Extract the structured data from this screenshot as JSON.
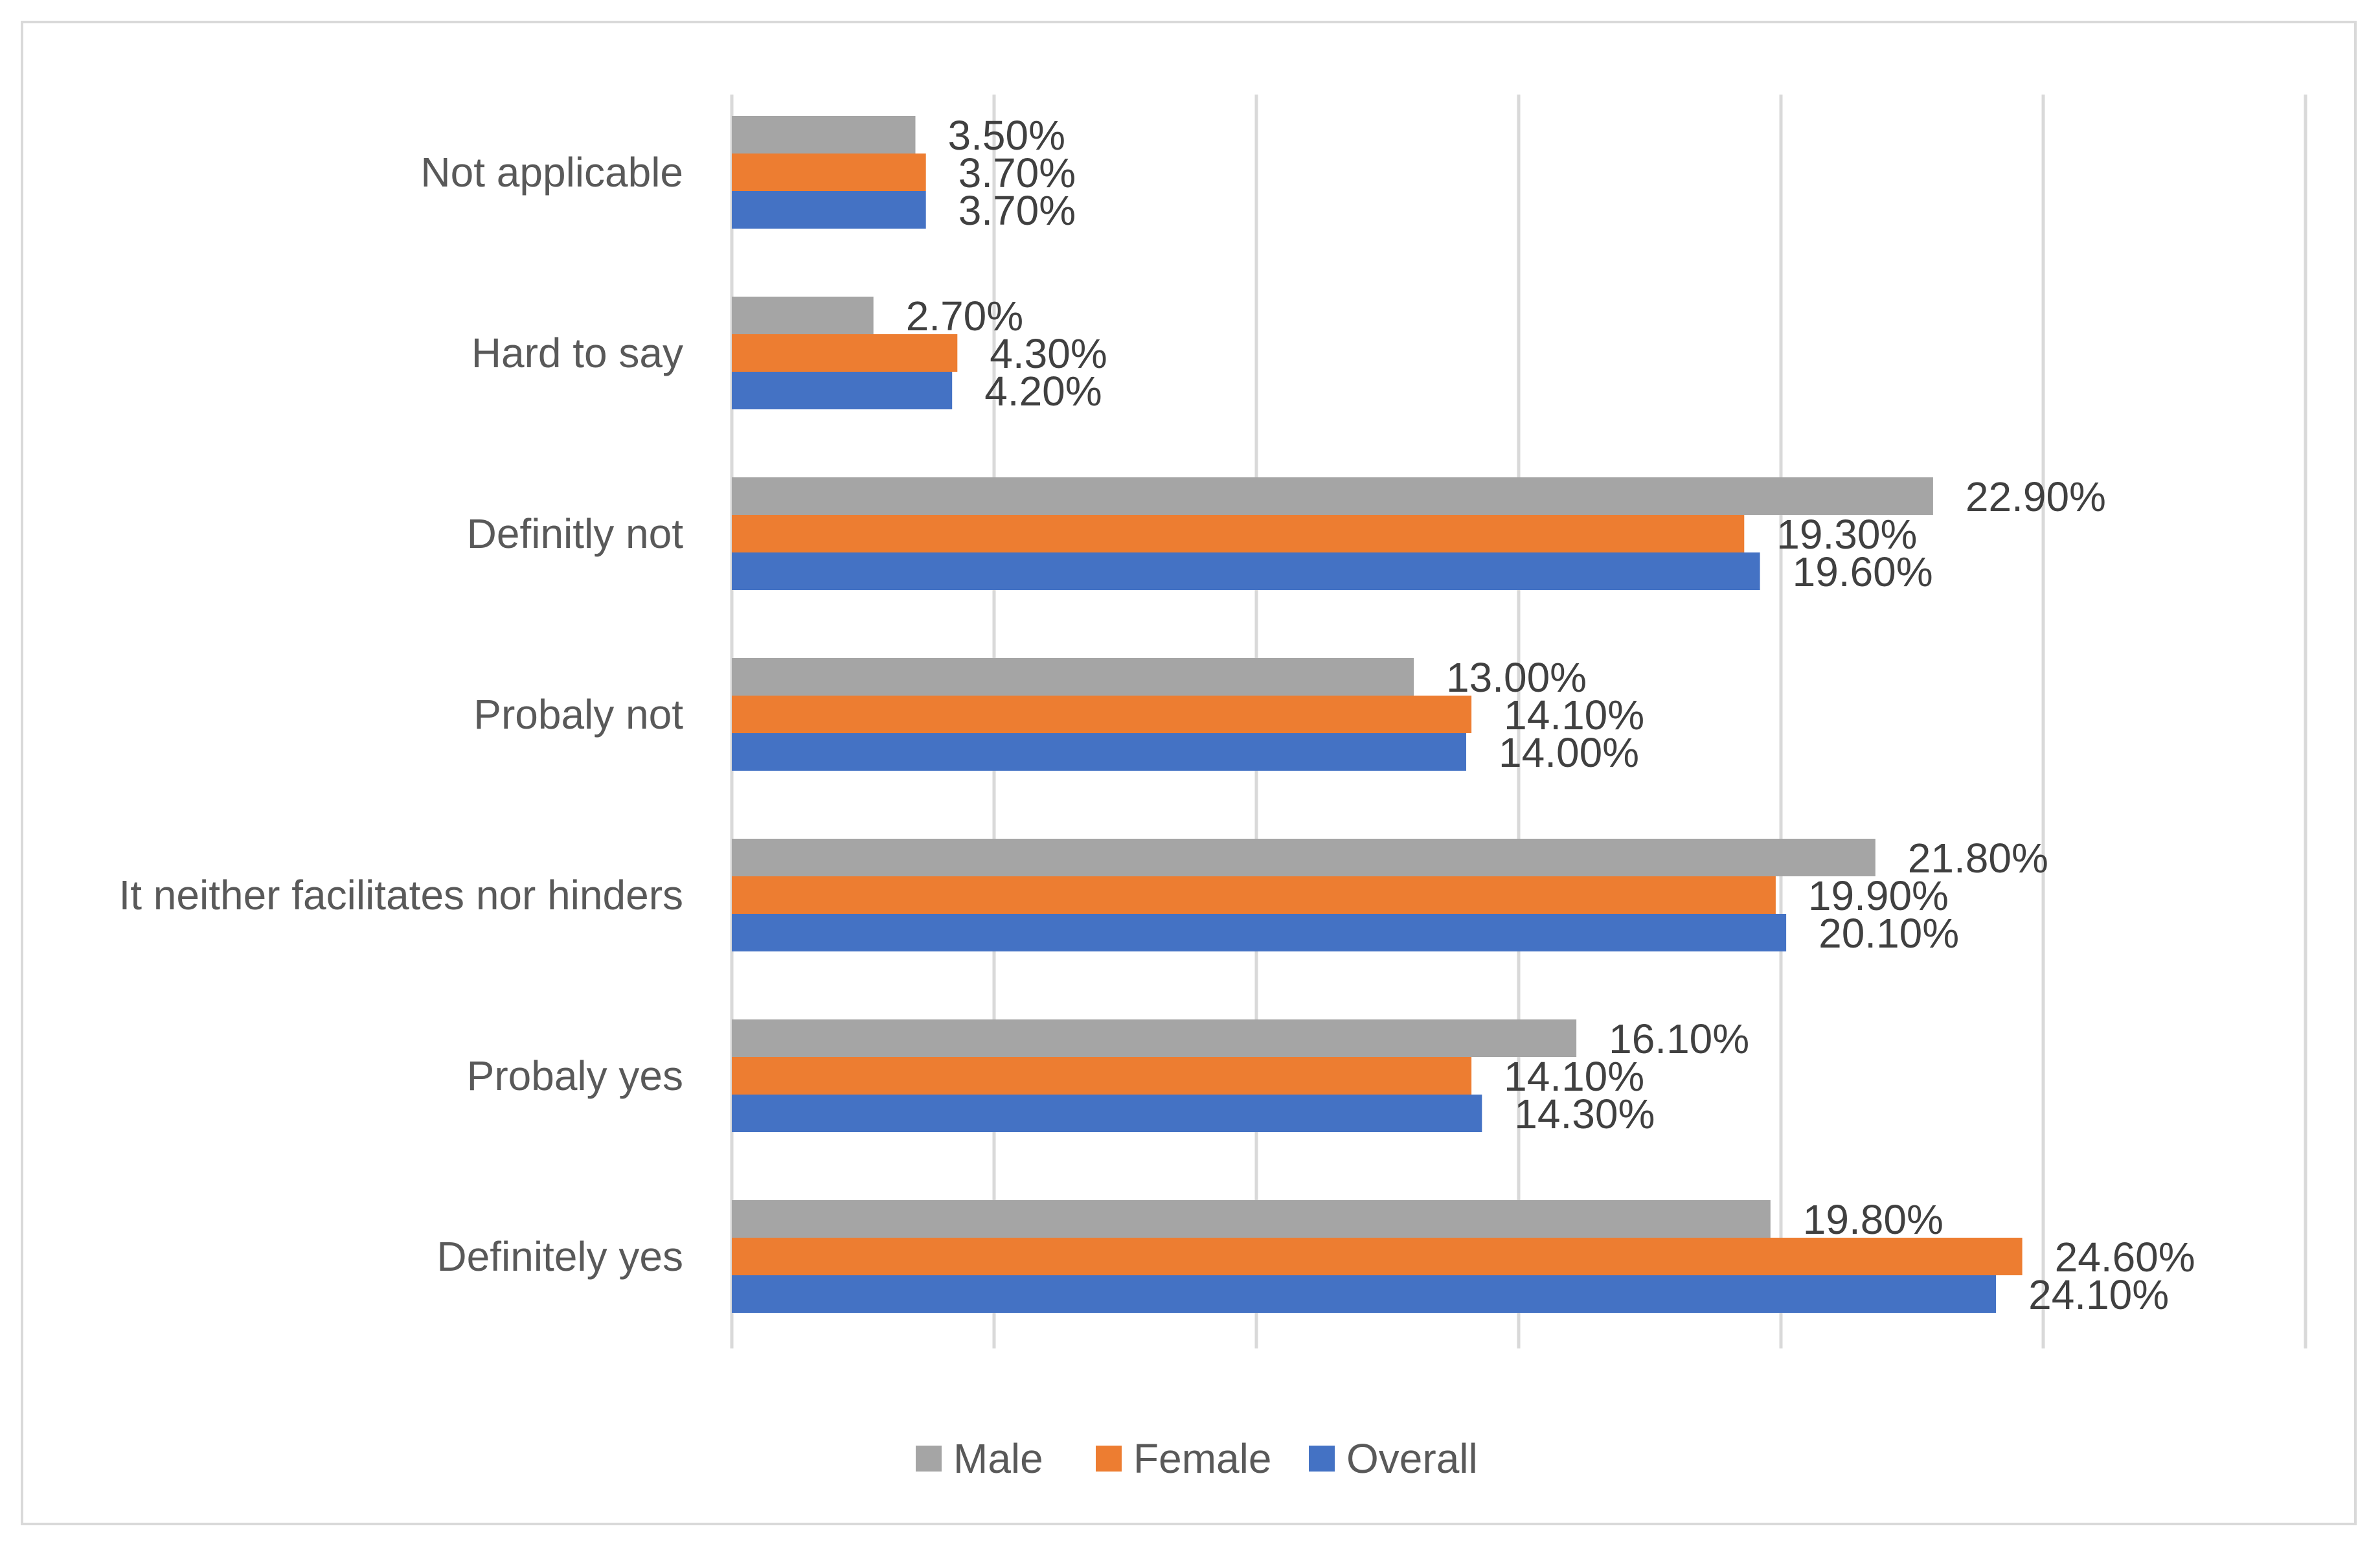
{
  "chart_data": {
    "type": "bar",
    "orientation": "horizontal",
    "title": "",
    "xlabel": "",
    "ylabel": "",
    "xlim": [
      0,
      30
    ],
    "gridlines": [
      0,
      5,
      10,
      15,
      20,
      25,
      30
    ],
    "categories": [
      "Not applicable",
      "Hard to say",
      "Definitly not",
      "Probaly not",
      "It neither facilitates nor hinders",
      "Probaly yes",
      "Definitely yes"
    ],
    "series": [
      {
        "name": "Male",
        "color": "#a5a5a5",
        "values": [
          3.5,
          2.7,
          22.9,
          13.0,
          21.8,
          16.1,
          19.8
        ],
        "labels": [
          "3.50%",
          "2.70%",
          "22.90%",
          "13.00%",
          "21.80%",
          "16.10%",
          "19.80%"
        ]
      },
      {
        "name": "Female",
        "color": "#ed7d31",
        "values": [
          3.7,
          4.3,
          19.3,
          14.1,
          19.9,
          14.1,
          24.6
        ],
        "labels": [
          "3.70%",
          "4.30%",
          "19.30%",
          "14.10%",
          "19.90%",
          "14.10%",
          "24.60%"
        ]
      },
      {
        "name": "Overall",
        "color": "#4472c4",
        "values": [
          3.7,
          4.2,
          19.6,
          14.0,
          20.1,
          14.3,
          24.1
        ],
        "labels": [
          "3.70%",
          "4.20%",
          "19.60%",
          "14.00%",
          "20.10%",
          "14.30%",
          "24.10%"
        ]
      }
    ],
    "legend": {
      "position": "bottom",
      "items": [
        "Male",
        "Female",
        "Overall"
      ]
    },
    "grid_color": "#d9d9d9"
  }
}
